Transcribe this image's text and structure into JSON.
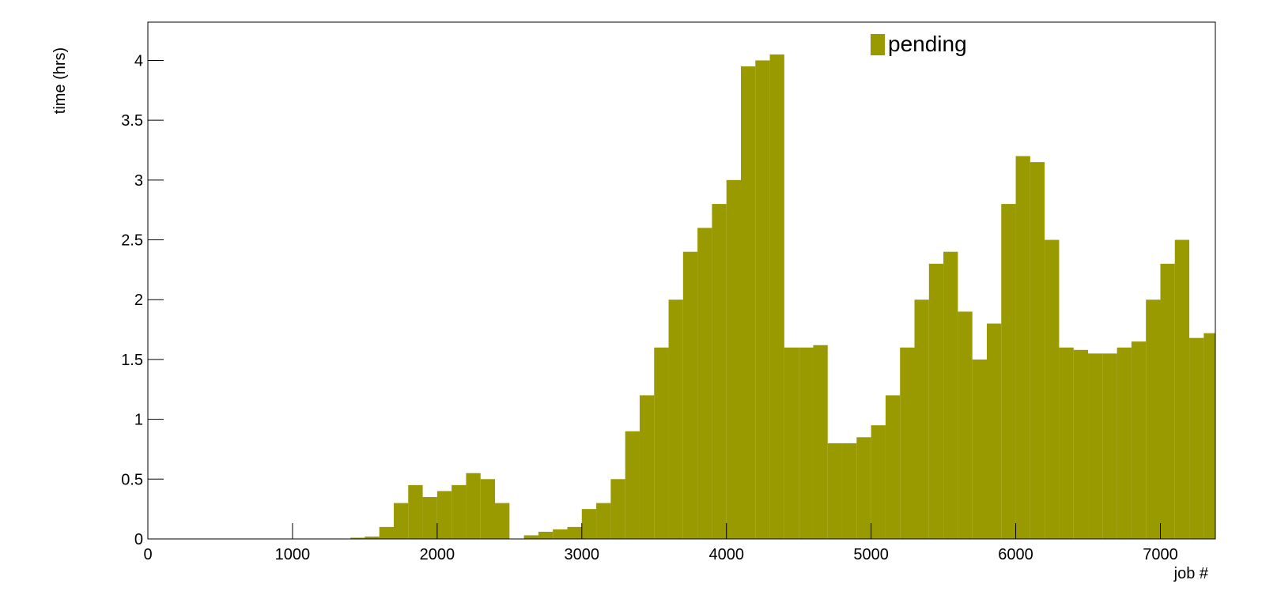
{
  "chart_data": {
    "type": "histogram",
    "xlabel": "job #",
    "ylabel": "time (hrs)",
    "legend": {
      "label": "pending",
      "position": "top-right"
    },
    "color": "#999900",
    "bins": [
      0,
      100,
      200,
      300,
      400,
      500,
      600,
      700,
      800,
      900,
      1000,
      1100,
      1200,
      1300,
      1400,
      1500,
      1600,
      1700,
      1800,
      1900,
      2000,
      2100,
      2200,
      2300,
      2400,
      2500,
      2600,
      2700,
      2800,
      2900,
      3000,
      3100,
      3200,
      3300,
      3400,
      3500,
      3600,
      3700,
      3800,
      3900,
      4000,
      4100,
      4200,
      4300,
      4400,
      4500,
      4600,
      4700,
      4800,
      4900,
      5000,
      5100,
      5200,
      5300,
      5400,
      5500,
      5600,
      5700,
      5800,
      5900,
      6000,
      6100,
      6200,
      6300,
      6400,
      6500,
      6600,
      6700,
      6800,
      6900,
      7000,
      7100,
      7200,
      7300,
      7380
    ],
    "values": [
      0,
      0,
      0,
      0,
      0,
      0,
      0,
      0,
      0,
      0,
      0,
      0,
      0,
      0,
      0.01,
      0.02,
      0.1,
      0.3,
      0.45,
      0.35,
      0.4,
      0.45,
      0.55,
      0.5,
      0.3,
      0,
      0.03,
      0.06,
      0.08,
      0.1,
      0.25,
      0.3,
      0.5,
      0.9,
      1.2,
      1.6,
      2.0,
      2.4,
      2.6,
      2.8,
      3.0,
      3.95,
      4.0,
      4.05,
      1.6,
      1.6,
      1.62,
      0.8,
      0.8,
      0.85,
      0.95,
      1.2,
      1.6,
      2.0,
      2.3,
      2.4,
      1.9,
      1.5,
      1.8,
      2.8,
      3.2,
      3.15,
      2.5,
      1.6,
      1.58,
      1.55,
      1.55,
      1.6,
      1.65,
      2.0,
      2.3,
      2.5,
      1.68,
      1.72
    ],
    "xlim": [
      0,
      7380
    ],
    "xticks": [
      0,
      1000,
      2000,
      3000,
      4000,
      5000,
      6000,
      7000
    ],
    "ylim": [
      0,
      4.32
    ],
    "yticks": [
      0,
      0.5,
      1,
      1.5,
      2,
      2.5,
      3,
      3.5,
      4
    ]
  }
}
